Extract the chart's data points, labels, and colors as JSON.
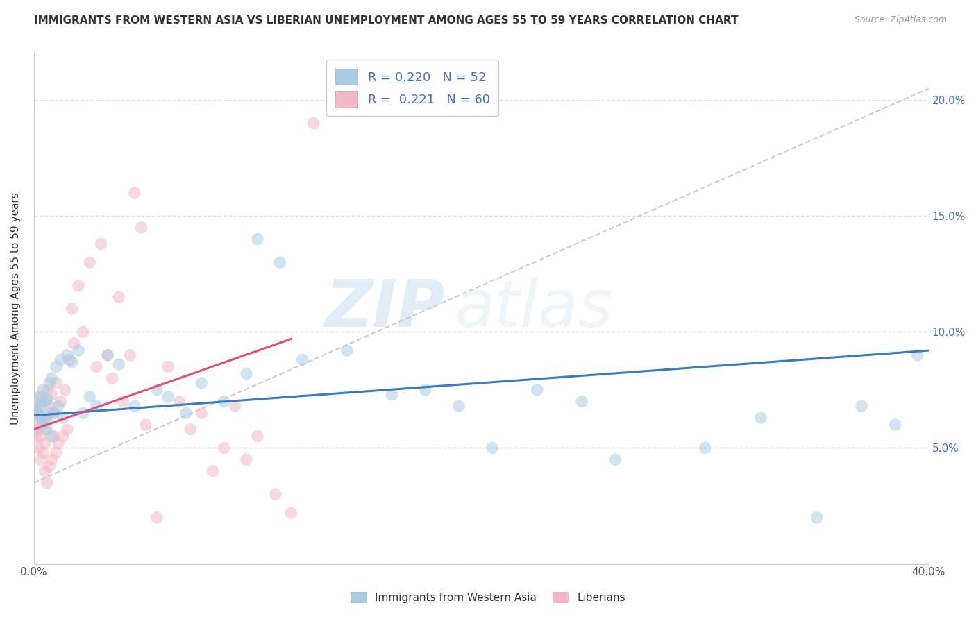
{
  "title": "IMMIGRANTS FROM WESTERN ASIA VS LIBERIAN UNEMPLOYMENT AMONG AGES 55 TO 59 YEARS CORRELATION CHART",
  "source": "Source: ZipAtlas.com",
  "xlabel_blue": "Immigrants from Western Asia",
  "xlabel_pink": "Liberians",
  "ylabel": "Unemployment Among Ages 55 to 59 years",
  "R_blue": 0.22,
  "N_blue": 52,
  "R_pink": 0.221,
  "N_pink": 60,
  "xlim": [
    0.0,
    0.4
  ],
  "ylim": [
    0.0,
    0.22
  ],
  "xtick_positions": [
    0.0,
    0.05,
    0.1,
    0.15,
    0.2,
    0.25,
    0.3,
    0.35,
    0.4
  ],
  "xtick_labels": [
    "0.0%",
    "",
    "",
    "",
    "",
    "",
    "",
    "",
    "40.0%"
  ],
  "ytick_positions": [
    0.0,
    0.05,
    0.1,
    0.15,
    0.2
  ],
  "ytick_labels_right": [
    "",
    "5.0%",
    "10.0%",
    "15.0%",
    "20.0%"
  ],
  "color_blue": "#a8cce4",
  "color_pink": "#f4b8c8",
  "line_color_blue": "#3a7abf",
  "line_color_pink": "#e05070",
  "line_color_gray": "#cccccc",
  "blue_trend": [
    0.0,
    0.4,
    0.064,
    0.092
  ],
  "pink_trend": [
    0.0,
    0.115,
    0.058,
    0.097
  ],
  "gray_trend": [
    0.0,
    0.4,
    0.035,
    0.205
  ],
  "blue_x": [
    0.001,
    0.002,
    0.002,
    0.003,
    0.003,
    0.004,
    0.004,
    0.005,
    0.005,
    0.006,
    0.006,
    0.007,
    0.007,
    0.008,
    0.008,
    0.009,
    0.01,
    0.011,
    0.012,
    0.013,
    0.015,
    0.017,
    0.02,
    0.022,
    0.025,
    0.028,
    0.033,
    0.038,
    0.045,
    0.055,
    0.06,
    0.068,
    0.075,
    0.085,
    0.095,
    0.1,
    0.11,
    0.12,
    0.14,
    0.16,
    0.175,
    0.19,
    0.205,
    0.225,
    0.245,
    0.26,
    0.3,
    0.325,
    0.35,
    0.37,
    0.385,
    0.395
  ],
  "blue_y": [
    0.067,
    0.065,
    0.072,
    0.063,
    0.068,
    0.06,
    0.075,
    0.058,
    0.07,
    0.062,
    0.071,
    0.065,
    0.078,
    0.055,
    0.08,
    0.065,
    0.085,
    0.068,
    0.088,
    0.063,
    0.09,
    0.087,
    0.092,
    0.065,
    0.072,
    0.068,
    0.09,
    0.086,
    0.068,
    0.075,
    0.072,
    0.065,
    0.078,
    0.07,
    0.082,
    0.14,
    0.13,
    0.088,
    0.092,
    0.073,
    0.075,
    0.068,
    0.05,
    0.075,
    0.07,
    0.045,
    0.05,
    0.063,
    0.02,
    0.068,
    0.06,
    0.09
  ],
  "pink_x": [
    0.001,
    0.001,
    0.001,
    0.002,
    0.002,
    0.002,
    0.003,
    0.003,
    0.003,
    0.004,
    0.004,
    0.004,
    0.005,
    0.005,
    0.005,
    0.006,
    0.006,
    0.006,
    0.007,
    0.007,
    0.008,
    0.008,
    0.009,
    0.009,
    0.01,
    0.01,
    0.011,
    0.012,
    0.013,
    0.014,
    0.015,
    0.016,
    0.017,
    0.018,
    0.02,
    0.022,
    0.025,
    0.028,
    0.03,
    0.033,
    0.035,
    0.038,
    0.04,
    0.043,
    0.045,
    0.048,
    0.05,
    0.055,
    0.06,
    0.065,
    0.07,
    0.075,
    0.08,
    0.085,
    0.09,
    0.095,
    0.1,
    0.108,
    0.115,
    0.125
  ],
  "pink_y": [
    0.06,
    0.068,
    0.055,
    0.05,
    0.058,
    0.065,
    0.045,
    0.055,
    0.072,
    0.048,
    0.062,
    0.07,
    0.04,
    0.052,
    0.063,
    0.035,
    0.058,
    0.075,
    0.042,
    0.068,
    0.045,
    0.073,
    0.055,
    0.065,
    0.048,
    0.078,
    0.052,
    0.07,
    0.055,
    0.075,
    0.058,
    0.088,
    0.11,
    0.095,
    0.12,
    0.1,
    0.13,
    0.085,
    0.138,
    0.09,
    0.08,
    0.115,
    0.07,
    0.09,
    0.16,
    0.145,
    0.06,
    0.02,
    0.085,
    0.07,
    0.058,
    0.065,
    0.04,
    0.05,
    0.068,
    0.045,
    0.055,
    0.03,
    0.022,
    0.19
  ],
  "watermark_zip": "ZIP",
  "watermark_atlas": "atlas",
  "background_color": "#ffffff",
  "grid_color": "#e0e0e0"
}
